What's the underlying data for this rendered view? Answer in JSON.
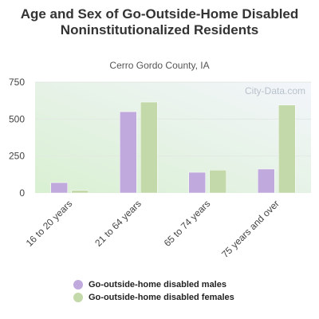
{
  "title": "Age and Sex of Go-Outside-Home Disabled Noninstitutionalized Residents",
  "subtitle": "Cerro Gordo County, IA",
  "watermark": "City-Data.com",
  "chart_data": {
    "type": "bar",
    "title": "Age and Sex of Go-Outside-Home Disabled Noninstitutionalized Residents",
    "subtitle": "Cerro Gordo County, IA",
    "categories": [
      "16 to 20 years",
      "21 to 64 years",
      "65 to 74 years",
      "75 years and over"
    ],
    "series": [
      {
        "name": "Go-outside-home disabled males",
        "values": [
          70,
          550,
          140,
          162
        ],
        "color": "#c0a9dc"
      },
      {
        "name": "Go-outside-home disabled females",
        "values": [
          18,
          615,
          155,
          595
        ],
        "color": "#c4d9a9"
      }
    ],
    "ylim": [
      0,
      750
    ],
    "yticks": [
      0,
      250,
      500,
      750
    ],
    "xlabel": "",
    "ylabel": "",
    "grid": true,
    "legend": "bottom"
  }
}
